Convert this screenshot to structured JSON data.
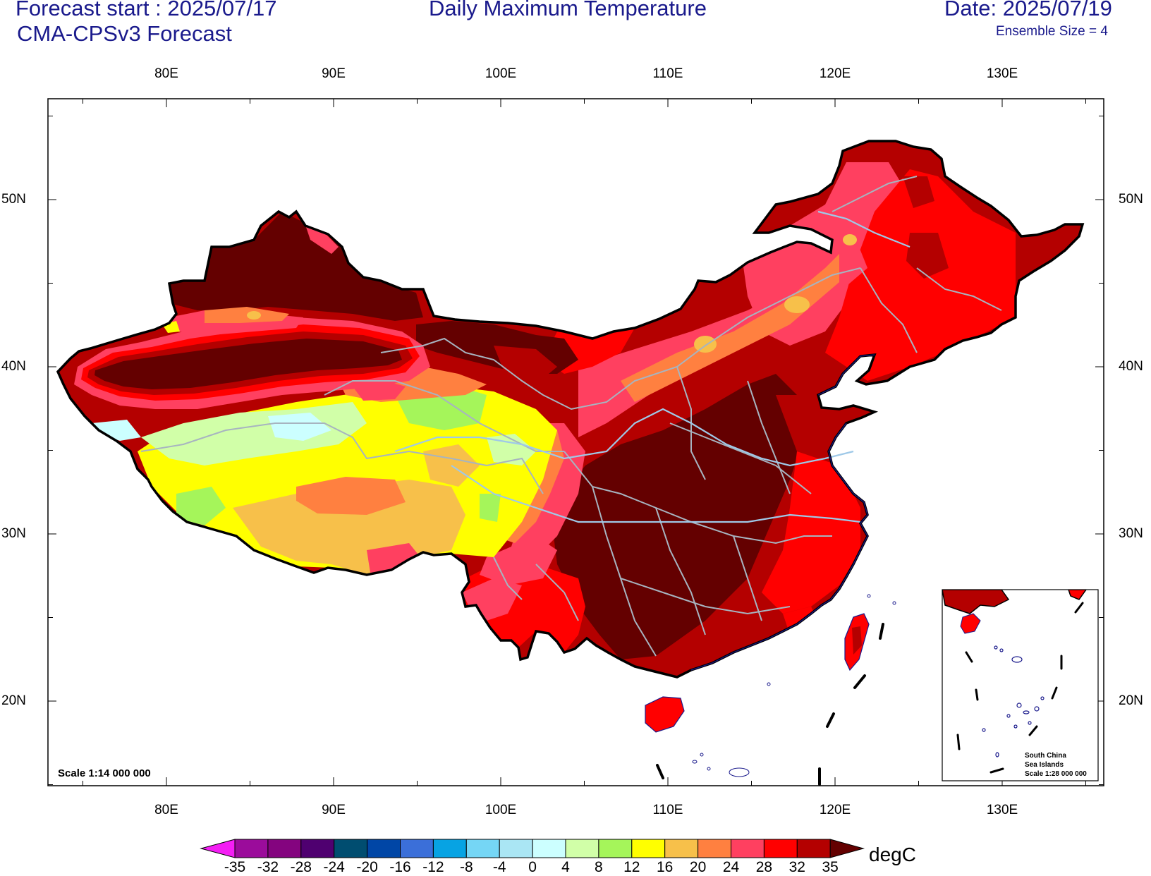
{
  "header": {
    "forecast_start": "Forecast start : 2025/07/17",
    "model": "CMA-CPSv3 Forecast",
    "title": "Daily Maximum Temperature",
    "date": "Date: 2025/07/19",
    "ensemble": "Ensemble Size = 4"
  },
  "axes": {
    "lon_labels": [
      "80E",
      "90E",
      "100E",
      "110E",
      "120E",
      "130E"
    ],
    "lat_labels": [
      "50N",
      "40N",
      "30N",
      "20N"
    ]
  },
  "colorbar": {
    "unit": "degC",
    "levels": [
      "-35",
      "-32",
      "-28",
      "-24",
      "-20",
      "-16",
      "-12",
      "-8",
      "-4",
      "0",
      "4",
      "8",
      "12",
      "16",
      "20",
      "24",
      "28",
      "32",
      "35"
    ],
    "colors": [
      "#f41ef4",
      "#9b0c9b",
      "#84047f",
      "#4f0070",
      "#004d70",
      "#0046a6",
      "#3b6fd9",
      "#07a3e3",
      "#75d6f5",
      "#aae6f4",
      "#ccffff",
      "#d1ffa8",
      "#a5f55a",
      "#ffff00",
      "#f7c04a",
      "#ff8040",
      "#ff4060",
      "#ff0000",
      "#b40000",
      "#640000"
    ]
  },
  "map": {
    "scale": "Scale 1:14 000 000",
    "inset_title_1": "South China",
    "inset_title_2": "Sea Islands",
    "inset_scale": "Scale 1:28 000 000"
  }
}
